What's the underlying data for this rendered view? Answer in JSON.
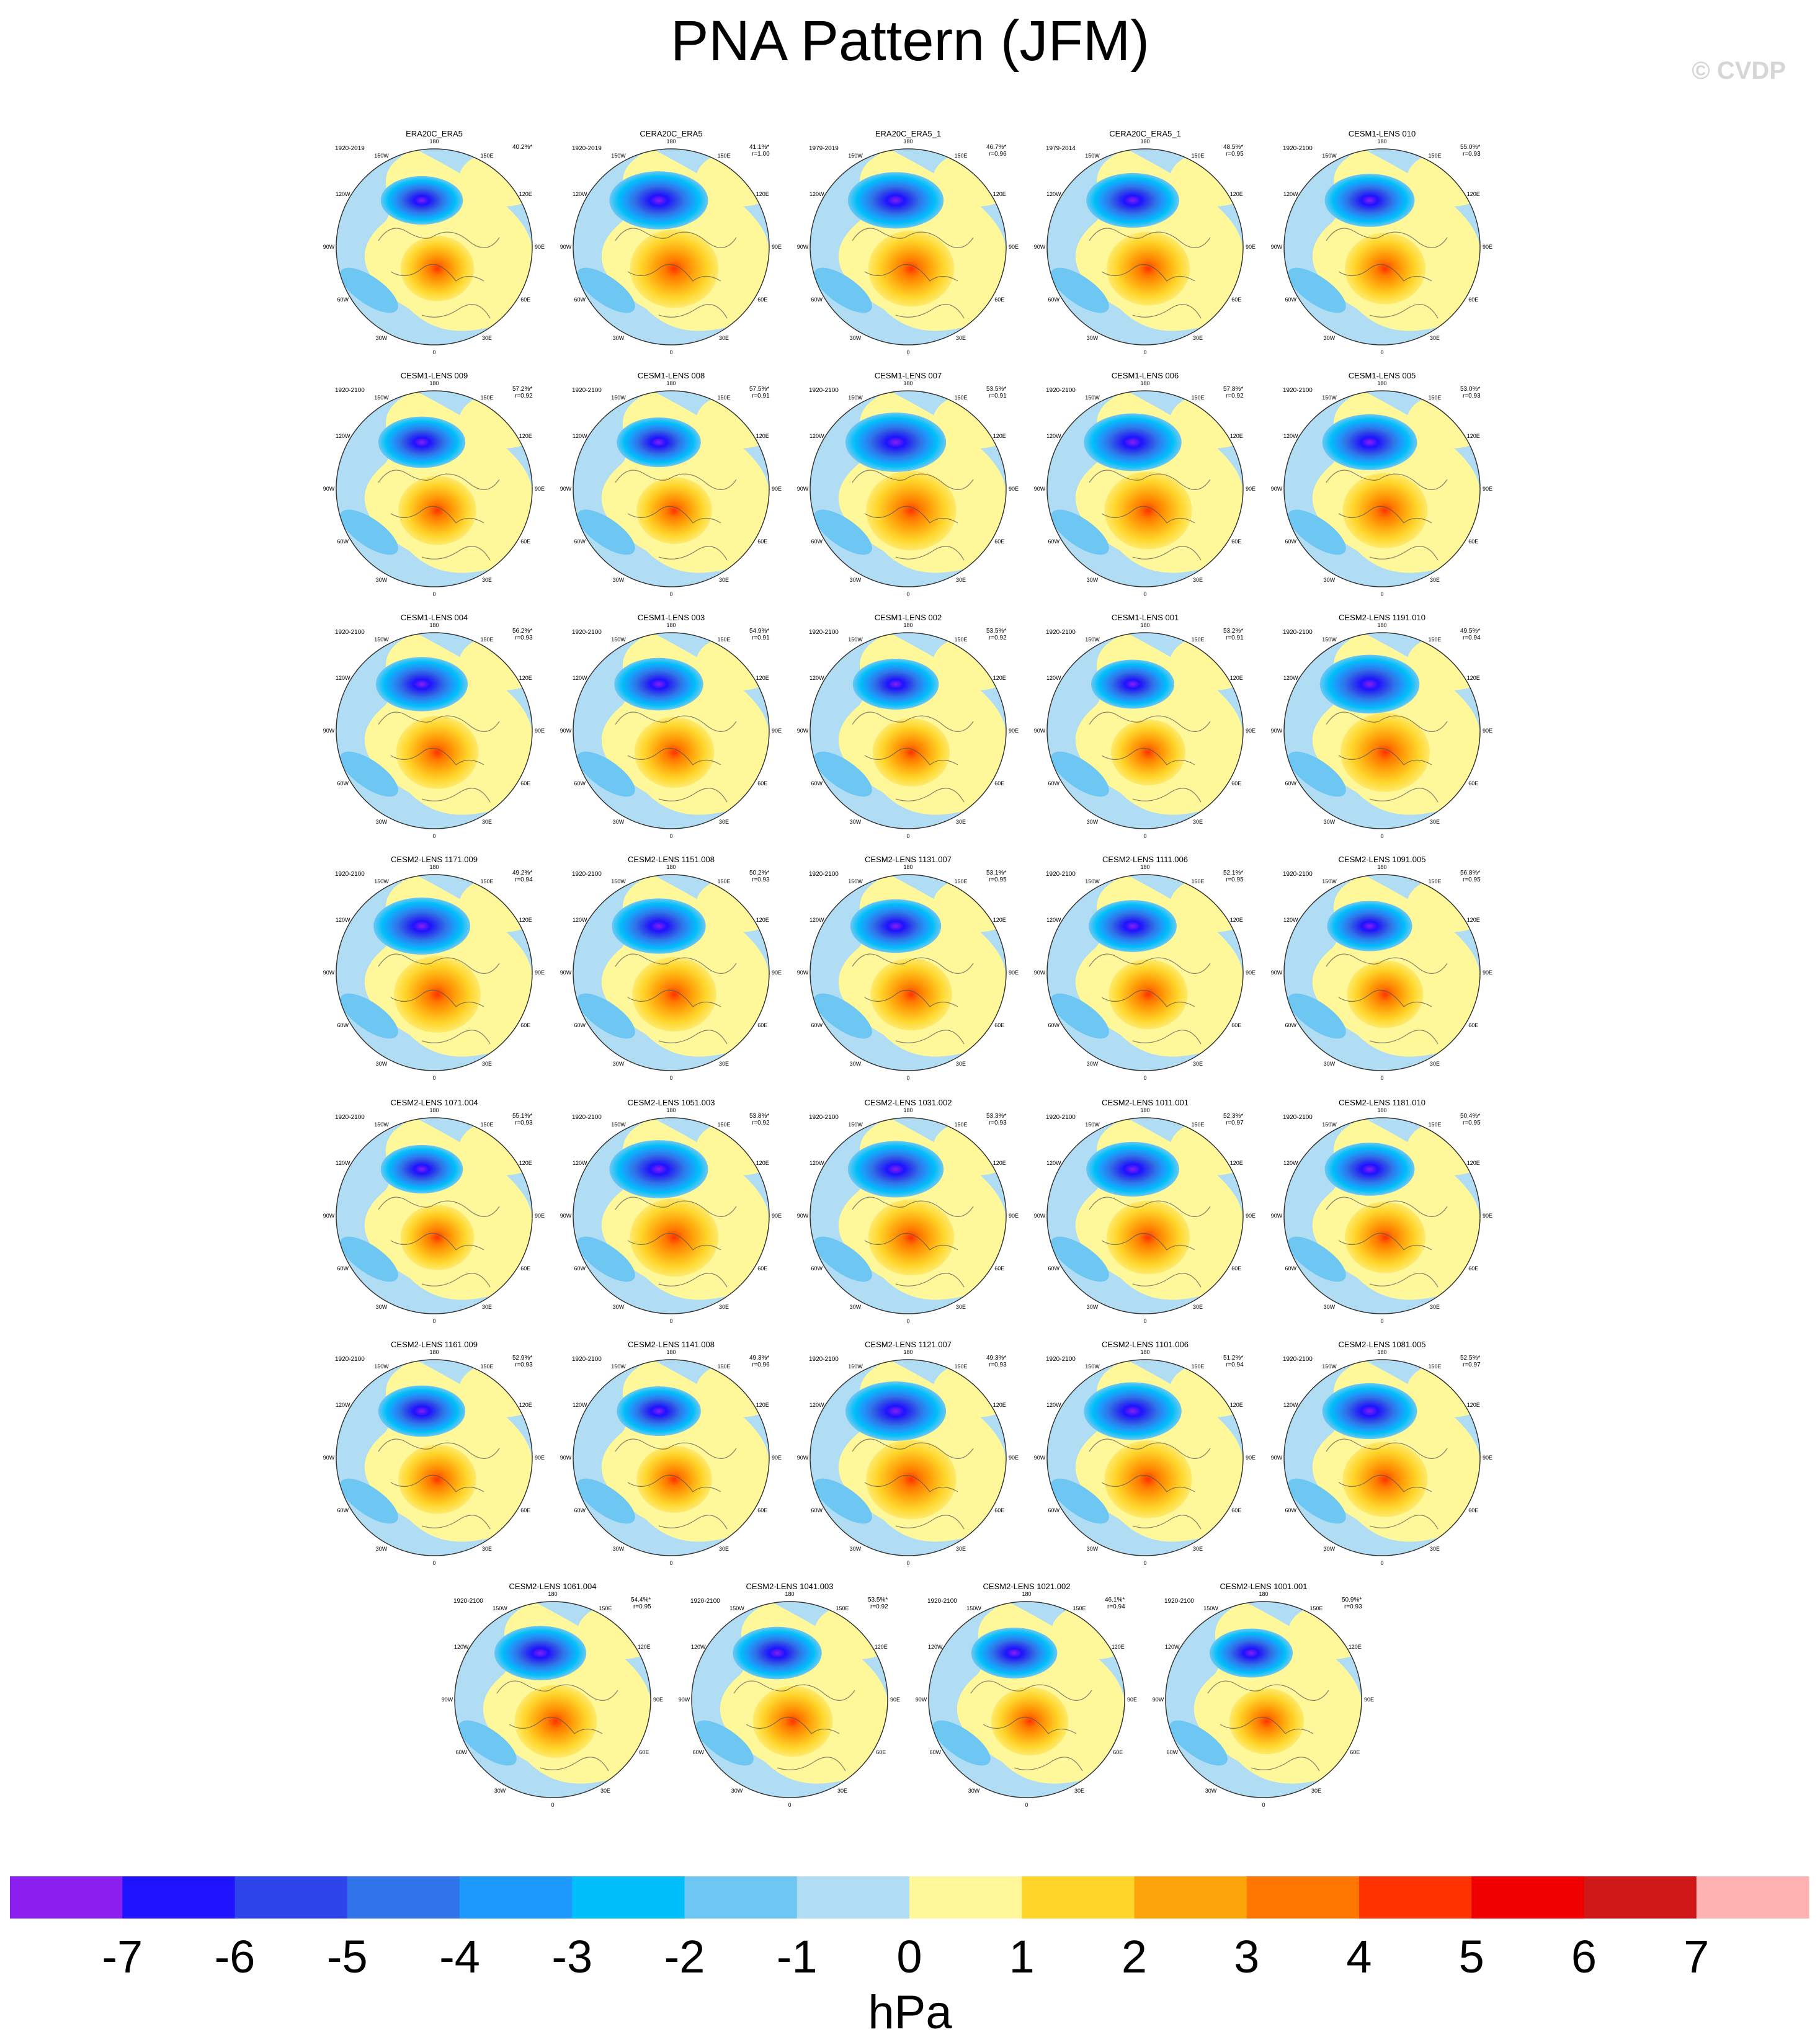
{
  "title": "PNA Pattern (JFM)",
  "watermark": "© CVDP",
  "unit": "hPa",
  "colorbar": {
    "labels": [
      "-7",
      "-6",
      "-5",
      "-4",
      "-3",
      "-2",
      "-1",
      "0",
      "1",
      "2",
      "3",
      "4",
      "5",
      "6",
      "7"
    ],
    "colors": [
      "#8B1FF0",
      "#1E12FF",
      "#2C44EA",
      "#2F74E8",
      "#1C99FA",
      "#00BFFA",
      "#6EC7F2",
      "#B0DDF3",
      "#FFF89A",
      "#FFD52A",
      "#FFA50C",
      "#FF7700",
      "#FF3300",
      "#F00000",
      "#D01818",
      "#FFB2B2"
    ]
  },
  "panels": [
    {
      "title": "ERA20C_ERA5",
      "period": "1920-2019",
      "pct": "40.2%*",
      "r": ""
    },
    {
      "title": "CERA20C_ERA5",
      "period": "1920-2019",
      "pct": "41.1%*",
      "r": "r=1.00"
    },
    {
      "title": "ERA20C_ERA5_1",
      "period": "1979-2019",
      "pct": "46.7%*",
      "r": "r=0.96"
    },
    {
      "title": "CERA20C_ERA5_1",
      "period": "1979-2014",
      "pct": "48.5%*",
      "r": "r=0.95"
    },
    {
      "title": "CESM1-LENS 010",
      "period": "1920-2100",
      "pct": "55.0%*",
      "r": "r=0.93"
    },
    {
      "title": "CESM1-LENS 009",
      "period": "1920-2100",
      "pct": "57.2%*",
      "r": "r=0.92"
    },
    {
      "title": "CESM1-LENS 008",
      "period": "1920-2100",
      "pct": "57.5%*",
      "r": "r=0.91"
    },
    {
      "title": "CESM1-LENS 007",
      "period": "1920-2100",
      "pct": "53.5%*",
      "r": "r=0.91"
    },
    {
      "title": "CESM1-LENS 006",
      "period": "1920-2100",
      "pct": "57.8%*",
      "r": "r=0.92"
    },
    {
      "title": "CESM1-LENS 005",
      "period": "1920-2100",
      "pct": "53.0%*",
      "r": "r=0.93"
    },
    {
      "title": "CESM1-LENS 004",
      "period": "1920-2100",
      "pct": "56.2%*",
      "r": "r=0.93"
    },
    {
      "title": "CESM1-LENS 003",
      "period": "1920-2100",
      "pct": "54.9%*",
      "r": "r=0.91"
    },
    {
      "title": "CESM1-LENS 002",
      "period": "1920-2100",
      "pct": "53.5%*",
      "r": "r=0.92"
    },
    {
      "title": "CESM1-LENS 001",
      "period": "1920-2100",
      "pct": "53.2%*",
      "r": "r=0.91"
    },
    {
      "title": "CESM2-LENS 1191.010",
      "period": "1920-2100",
      "pct": "49.5%*",
      "r": "r=0.94"
    },
    {
      "title": "CESM2-LENS 1171.009",
      "period": "1920-2100",
      "pct": "49.2%*",
      "r": "r=0.94"
    },
    {
      "title": "CESM2-LENS 1151.008",
      "period": "1920-2100",
      "pct": "50.2%*",
      "r": "r=0.93"
    },
    {
      "title": "CESM2-LENS 1131.007",
      "period": "1920-2100",
      "pct": "53.1%*",
      "r": "r=0.95"
    },
    {
      "title": "CESM2-LENS 1111.006",
      "period": "1920-2100",
      "pct": "52.1%*",
      "r": "r=0.95"
    },
    {
      "title": "CESM2-LENS 1091.005",
      "period": "1920-2100",
      "pct": "56.8%*",
      "r": "r=0.95"
    },
    {
      "title": "CESM2-LENS 1071.004",
      "period": "1920-2100",
      "pct": "55.1%*",
      "r": "r=0.93"
    },
    {
      "title": "CESM2-LENS 1051.003",
      "period": "1920-2100",
      "pct": "53.8%*",
      "r": "r=0.92"
    },
    {
      "title": "CESM2-LENS 1031.002",
      "period": "1920-2100",
      "pct": "53.3%*",
      "r": "r=0.93"
    },
    {
      "title": "CESM2-LENS 1011.001",
      "period": "1920-2100",
      "pct": "52.3%*",
      "r": "r=0.97"
    },
    {
      "title": "CESM2-LENS 1181.010",
      "period": "1920-2100",
      "pct": "50.4%*",
      "r": "r=0.95"
    },
    {
      "title": "CESM2-LENS 1161.009",
      "period": "1920-2100",
      "pct": "52.9%*",
      "r": "r=0.93"
    },
    {
      "title": "CESM2-LENS 1141.008",
      "period": "1920-2100",
      "pct": "49.3%*",
      "r": "r=0.96"
    },
    {
      "title": "CESM2-LENS 1121.007",
      "period": "1920-2100",
      "pct": "49.3%*",
      "r": "r=0.93"
    },
    {
      "title": "CESM2-LENS 1101.006",
      "period": "1920-2100",
      "pct": "51.2%*",
      "r": "r=0.94"
    },
    {
      "title": "CESM2-LENS 1081.005",
      "period": "1920-2100",
      "pct": "52.5%*",
      "r": "r=0.97"
    },
    {
      "title": "CESM2-LENS 1061.004",
      "period": "1920-2100",
      "pct": "54.4%*",
      "r": "r=0.95"
    },
    {
      "title": "CESM2-LENS 1041.003",
      "period": "1920-2100",
      "pct": "53.5%*",
      "r": "r=0.92"
    },
    {
      "title": "CESM2-LENS 1021.002",
      "period": "1920-2100",
      "pct": "46.1%*",
      "r": "r=0.94"
    },
    {
      "title": "CESM2-LENS 1001.001",
      "period": "1920-2100",
      "pct": "50.9%*",
      "r": "r=0.93"
    }
  ],
  "lon_labels": [
    "180",
    "150E",
    "120E",
    "90E",
    "60E",
    "30E",
    "0",
    "30W",
    "60W",
    "90W",
    "120W",
    "150W"
  ]
}
